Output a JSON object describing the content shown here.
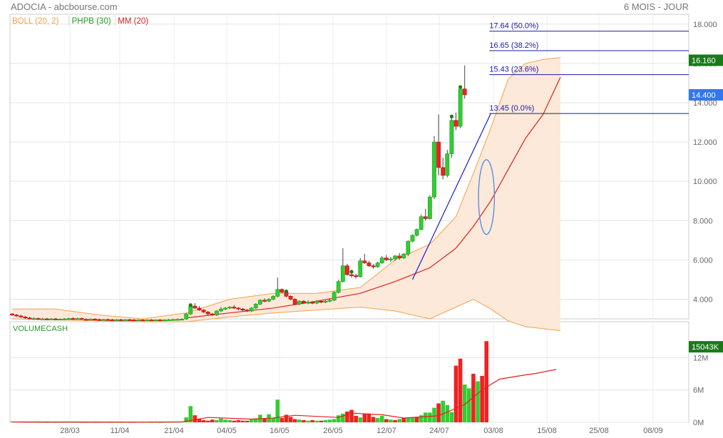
{
  "header": {
    "title": "ADOCIA - abcbourse.com",
    "period": "6 MOIS - JOUR"
  },
  "legend": [
    {
      "label": "BOLL (20, 2)",
      "color": "#f5a04a"
    },
    {
      "label": "PHPB (30)",
      "color": "#1e9e1e"
    },
    {
      "label": "MM (20)",
      "color": "#e02020"
    }
  ],
  "volume_label": "VOLUMECASH",
  "colors": {
    "up": "#33cc33",
    "down": "#ee2222",
    "band_fill": "#fde9d9",
    "band_line": "#f5a04a",
    "ma": "#e02020",
    "trend": "#1a1ad6",
    "fib": "#1a1aaa",
    "marker": "#1a7a1a"
  },
  "chart_data": [
    {
      "type": "candlestick",
      "title": "ADOCIA",
      "ylim": [
        3.0,
        18.5
      ],
      "y_ticks": [
        "4.000",
        "6.000",
        "8.000",
        "10.000",
        "12.000",
        "14.000",
        "16.000",
        "18.000"
      ],
      "x_ticks": [
        "28/03",
        "11/04",
        "21/04",
        "04/05",
        "16/05",
        "26/05",
        "12/07",
        "24/07",
        "03/08",
        "15/08",
        "25/08",
        "08/09"
      ],
      "price_tags": [
        {
          "label": "16.160",
          "value": 16.16,
          "color": "#1a7a1a"
        },
        {
          "label": "14.400",
          "value": 14.4,
          "color": "#3377ee"
        }
      ],
      "fibonacci": [
        {
          "label": "17.64  (50.0%)",
          "value": 17.64
        },
        {
          "label": "16.65  (38.2%)",
          "value": 16.65
        },
        {
          "label": "15.43  (23.6%)",
          "value": 15.43
        },
        {
          "label": "13.45  (0.0%)",
          "value": 13.45
        }
      ],
      "trend_line": [
        {
          "i": 92,
          "v": 5.0
        },
        {
          "i": 110,
          "v": 13.45
        }
      ],
      "ellipse": {
        "i": 109,
        "v": 9.2,
        "ri": 1.5,
        "rv": 1.9
      },
      "candles": [
        [
          3.25,
          3.3,
          3.15,
          3.2
        ],
        [
          3.2,
          3.25,
          3.1,
          3.15
        ],
        [
          3.15,
          3.2,
          3.05,
          3.1
        ],
        [
          3.1,
          3.15,
          3.0,
          3.05
        ],
        [
          3.05,
          3.1,
          2.98,
          3.0
        ],
        [
          3.0,
          3.08,
          2.95,
          3.02
        ],
        [
          3.02,
          3.06,
          2.95,
          2.98
        ],
        [
          2.98,
          3.05,
          2.95,
          3.0
        ],
        [
          3.0,
          3.05,
          2.96,
          2.98
        ],
        [
          2.98,
          3.04,
          2.95,
          3.0
        ],
        [
          3.0,
          3.05,
          2.95,
          2.98
        ],
        [
          2.98,
          3.02,
          2.94,
          2.99
        ],
        [
          2.99,
          3.04,
          2.95,
          3.0
        ],
        [
          3.0,
          3.06,
          2.96,
          3.02
        ],
        [
          3.02,
          3.08,
          2.98,
          3.0
        ],
        [
          3.0,
          3.06,
          2.96,
          3.02
        ],
        [
          3.02,
          3.06,
          2.96,
          2.98
        ],
        [
          2.98,
          3.02,
          2.94,
          2.97
        ],
        [
          2.97,
          3.02,
          2.94,
          2.99
        ],
        [
          2.99,
          3.03,
          2.95,
          2.97
        ],
        [
          2.97,
          3.01,
          2.93,
          2.96
        ],
        [
          2.96,
          3.0,
          2.92,
          2.97
        ],
        [
          2.97,
          3.01,
          2.93,
          2.96
        ],
        [
          2.96,
          3.0,
          2.92,
          2.95
        ],
        [
          2.95,
          2.99,
          2.91,
          2.96
        ],
        [
          2.96,
          3.0,
          2.92,
          2.95
        ],
        [
          2.95,
          2.99,
          2.91,
          2.96
        ],
        [
          2.96,
          3.0,
          2.92,
          2.95
        ],
        [
          2.95,
          2.99,
          2.91,
          2.94
        ],
        [
          2.94,
          2.98,
          2.9,
          2.95
        ],
        [
          2.95,
          2.99,
          2.91,
          2.94
        ],
        [
          2.94,
          2.98,
          2.9,
          2.95
        ],
        [
          2.95,
          2.99,
          2.91,
          2.94
        ],
        [
          2.94,
          2.98,
          2.9,
          2.95
        ],
        [
          2.95,
          2.99,
          2.91,
          2.94
        ],
        [
          2.94,
          2.98,
          2.9,
          2.95
        ],
        [
          2.95,
          3.0,
          2.91,
          2.96
        ],
        [
          2.96,
          3.01,
          2.92,
          2.97
        ],
        [
          2.97,
          3.02,
          2.93,
          2.98
        ],
        [
          2.98,
          3.03,
          2.94,
          2.99
        ],
        [
          2.99,
          3.3,
          2.95,
          3.25
        ],
        [
          3.25,
          3.7,
          3.2,
          3.65
        ],
        [
          3.65,
          3.8,
          3.5,
          3.55
        ],
        [
          3.55,
          3.65,
          3.4,
          3.45
        ],
        [
          3.45,
          3.5,
          3.3,
          3.35
        ],
        [
          3.35,
          3.4,
          3.2,
          3.25
        ],
        [
          3.25,
          3.3,
          3.15,
          3.2
        ],
        [
          3.2,
          3.45,
          3.15,
          3.4
        ],
        [
          3.4,
          3.6,
          3.35,
          3.5
        ],
        [
          3.5,
          3.6,
          3.45,
          3.55
        ],
        [
          3.55,
          3.65,
          3.5,
          3.6
        ],
        [
          3.6,
          3.7,
          3.5,
          3.55
        ],
        [
          3.55,
          3.6,
          3.45,
          3.5
        ],
        [
          3.5,
          3.55,
          3.4,
          3.45
        ],
        [
          3.45,
          3.5,
          3.35,
          3.4
        ],
        [
          3.4,
          3.6,
          3.35,
          3.55
        ],
        [
          3.55,
          3.8,
          3.5,
          3.75
        ],
        [
          3.75,
          4.0,
          3.7,
          3.95
        ],
        [
          3.95,
          4.05,
          3.85,
          3.9
        ],
        [
          3.9,
          4.05,
          3.85,
          4.0
        ],
        [
          4.0,
          4.2,
          3.95,
          4.15
        ],
        [
          4.15,
          5.1,
          4.1,
          4.5
        ],
        [
          4.5,
          4.55,
          4.3,
          4.35
        ],
        [
          4.35,
          4.4,
          4.1,
          4.15
        ],
        [
          4.15,
          4.2,
          3.95,
          4.0
        ],
        [
          4.0,
          4.05,
          3.7,
          3.75
        ],
        [
          3.75,
          3.95,
          3.7,
          3.9
        ],
        [
          3.9,
          3.95,
          3.75,
          3.8
        ],
        [
          3.8,
          3.95,
          3.75,
          3.85
        ],
        [
          3.85,
          3.9,
          3.75,
          3.8
        ],
        [
          3.8,
          3.95,
          3.75,
          3.9
        ],
        [
          3.9,
          3.95,
          3.8,
          3.85
        ],
        [
          3.85,
          3.95,
          3.8,
          3.9
        ],
        [
          3.9,
          4.0,
          3.85,
          3.95
        ],
        [
          3.95,
          4.4,
          3.9,
          4.35
        ],
        [
          4.35,
          5.0,
          4.3,
          4.9
        ],
        [
          4.9,
          6.6,
          4.85,
          5.7
        ],
        [
          5.7,
          5.8,
          5.2,
          5.25
        ],
        [
          5.25,
          5.4,
          5.1,
          5.2
        ],
        [
          5.2,
          5.3,
          5.05,
          5.15
        ],
        [
          5.15,
          6.1,
          5.1,
          5.95
        ],
        [
          5.95,
          6.3,
          5.8,
          5.85
        ],
        [
          5.85,
          5.95,
          5.65,
          5.7
        ],
        [
          5.7,
          5.8,
          5.55,
          5.65
        ],
        [
          5.65,
          5.9,
          5.6,
          5.85
        ],
        [
          5.85,
          6.2,
          5.8,
          6.1
        ],
        [
          6.1,
          6.25,
          5.95,
          6.0
        ],
        [
          6.0,
          6.15,
          5.9,
          6.05
        ],
        [
          6.05,
          6.25,
          5.95,
          6.2
        ],
        [
          6.2,
          6.35,
          6.0,
          6.1
        ],
        [
          6.1,
          6.35,
          6.05,
          6.3
        ],
        [
          6.3,
          7.0,
          6.2,
          6.95
        ],
        [
          6.95,
          7.3,
          6.9,
          7.25
        ],
        [
          7.25,
          7.6,
          7.2,
          7.55
        ],
        [
          7.55,
          8.3,
          7.5,
          8.2
        ],
        [
          8.2,
          8.6,
          8.0,
          8.1
        ],
        [
          8.1,
          9.3,
          8.05,
          9.2
        ],
        [
          9.2,
          12.3,
          9.1,
          12.0
        ],
        [
          12.0,
          13.4,
          10.3,
          10.7
        ],
        [
          10.7,
          11.2,
          10.1,
          10.3
        ],
        [
          10.3,
          11.6,
          10.2,
          11.4
        ],
        [
          11.4,
          13.3,
          11.2,
          13.1
        ],
        [
          13.1,
          13.5,
          12.6,
          12.8
        ],
        [
          12.8,
          14.8,
          12.7,
          14.7
        ],
        [
          14.7,
          15.9,
          14.2,
          14.4
        ]
      ],
      "offset": 0,
      "ma": [
        [
          40,
          3.05
        ],
        [
          50,
          3.3
        ],
        [
          60,
          3.55
        ],
        [
          70,
          3.9
        ],
        [
          80,
          4.3
        ],
        [
          88,
          4.9
        ],
        [
          96,
          5.6
        ],
        [
          102,
          6.6
        ],
        [
          106,
          7.7
        ],
        [
          110,
          9.0
        ],
        [
          114,
          10.6
        ],
        [
          118,
          12.2
        ],
        [
          122,
          13.4
        ],
        [
          126,
          15.3
        ]
      ],
      "band_upper": [
        [
          0,
          3.5
        ],
        [
          10,
          3.5
        ],
        [
          20,
          3.2
        ],
        [
          30,
          3.0
        ],
        [
          40,
          3.3
        ],
        [
          50,
          4.0
        ],
        [
          60,
          4.3
        ],
        [
          70,
          4.3
        ],
        [
          80,
          4.6
        ],
        [
          88,
          6.0
        ],
        [
          96,
          6.8
        ],
        [
          102,
          8.2
        ],
        [
          106,
          10.4
        ],
        [
          110,
          12.7
        ],
        [
          114,
          15.2
        ],
        [
          118,
          16.0
        ],
        [
          122,
          16.2
        ],
        [
          126,
          16.3
        ]
      ],
      "band_lower": [
        [
          0,
          3.0
        ],
        [
          10,
          2.95
        ],
        [
          20,
          2.9
        ],
        [
          30,
          2.85
        ],
        [
          40,
          2.85
        ],
        [
          50,
          3.1
        ],
        [
          60,
          3.3
        ],
        [
          70,
          3.45
        ],
        [
          80,
          3.6
        ],
        [
          88,
          3.4
        ],
        [
          96,
          3.0
        ],
        [
          102,
          3.6
        ],
        [
          106,
          4.0
        ],
        [
          110,
          3.5
        ],
        [
          114,
          2.9
        ],
        [
          118,
          2.6
        ],
        [
          122,
          2.5
        ],
        [
          126,
          2.4
        ]
      ]
    },
    {
      "type": "bar",
      "title": "VOLUMECASH",
      "ylim": [
        0,
        16000
      ],
      "y_ticks": [
        "0M",
        "6M",
        "12M"
      ],
      "last_value_tag": "15043K",
      "values": [
        150,
        100,
        80,
        60,
        60,
        40,
        40,
        30,
        30,
        40,
        30,
        30,
        30,
        40,
        40,
        30,
        30,
        30,
        30,
        30,
        30,
        30,
        30,
        30,
        30,
        30,
        30,
        30,
        30,
        30,
        30,
        30,
        30,
        30,
        30,
        30,
        40,
        50,
        60,
        100,
        900,
        3000,
        1300,
        600,
        400,
        300,
        500,
        400,
        700,
        500,
        400,
        300,
        400,
        300,
        300,
        500,
        700,
        1400,
        700,
        1500,
        800,
        4200,
        800,
        1400,
        1000,
        600,
        500,
        400,
        300,
        400,
        300,
        300,
        400,
        500,
        600,
        1300,
        1600,
        2000,
        2300,
        1200,
        900,
        1500,
        1600,
        1000,
        800,
        1200,
        600,
        500,
        400,
        600,
        800,
        800,
        900,
        1000,
        1300,
        1800,
        1800,
        2700,
        3500,
        4000,
        3200,
        1900,
        10500,
        11800,
        7000,
        6300,
        9000,
        7600,
        8600,
        15043
      ],
      "up": [
        true,
        false,
        false,
        false,
        false,
        true,
        false,
        true,
        false,
        true,
        false,
        true,
        true,
        true,
        false,
        true,
        false,
        false,
        true,
        false,
        false,
        true,
        false,
        false,
        true,
        false,
        true,
        false,
        false,
        true,
        false,
        true,
        false,
        true,
        false,
        true,
        true,
        true,
        true,
        true,
        true,
        true,
        false,
        false,
        false,
        false,
        false,
        true,
        true,
        true,
        true,
        false,
        false,
        false,
        false,
        true,
        true,
        true,
        false,
        true,
        true,
        true,
        false,
        false,
        false,
        false,
        true,
        false,
        true,
        false,
        true,
        false,
        true,
        true,
        true,
        true,
        true,
        false,
        false,
        false,
        true,
        false,
        false,
        false,
        true,
        true,
        false,
        true,
        false,
        true,
        false,
        true,
        true,
        false,
        true,
        true,
        true,
        true,
        false,
        true,
        true,
        true,
        false,
        false,
        true,
        true,
        false,
        true,
        false
      ],
      "ma_line": [
        [
          0,
          60
        ],
        [
          30,
          40
        ],
        [
          39,
          70
        ],
        [
          45,
          900
        ],
        [
          55,
          600
        ],
        [
          60,
          800
        ],
        [
          65,
          1300
        ],
        [
          75,
          900
        ],
        [
          78,
          1700
        ],
        [
          85,
          1400
        ],
        [
          90,
          800
        ],
        [
          98,
          1200
        ],
        [
          104,
          3300
        ],
        [
          108,
          6000
        ],
        [
          112,
          8000
        ],
        [
          118,
          8800
        ],
        [
          120,
          9000
        ],
        [
          125,
          9800
        ]
      ]
    }
  ]
}
